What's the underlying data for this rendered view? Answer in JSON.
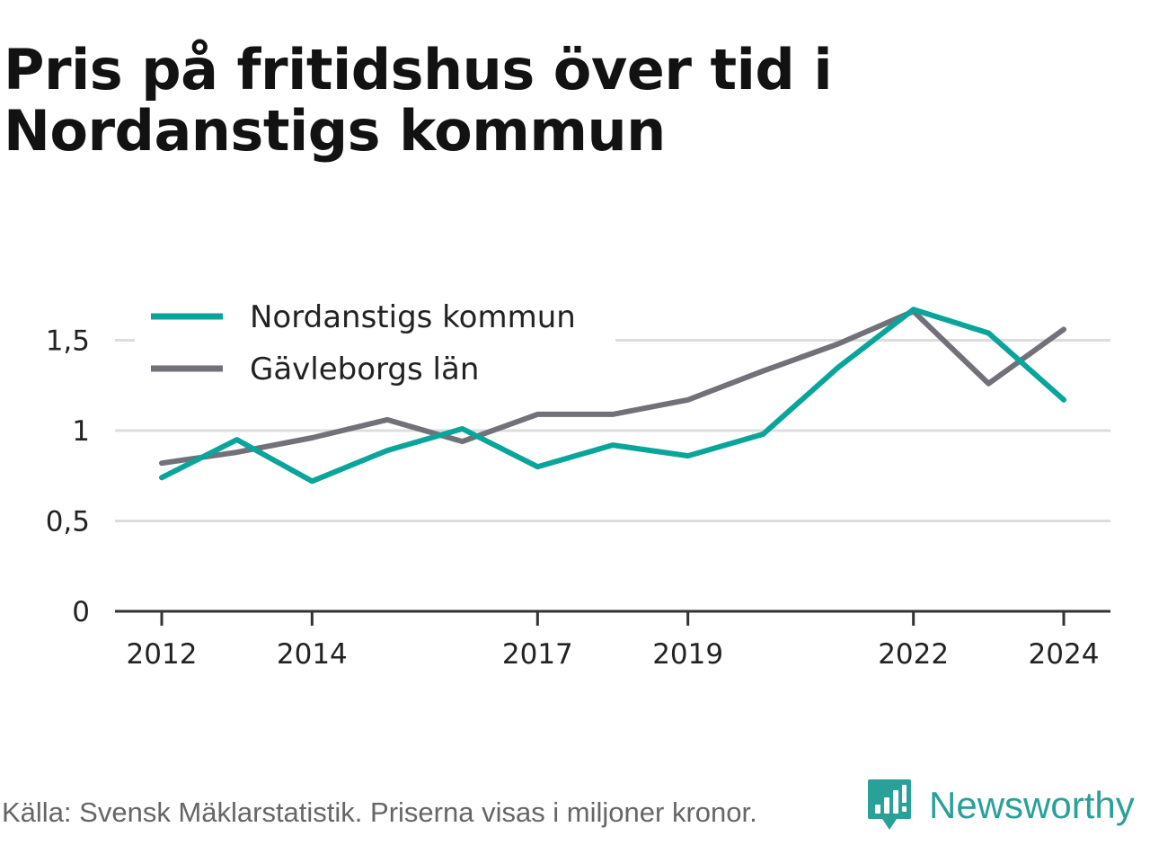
{
  "title": "Pris på fritidshus över tid i Nordanstigs kommun",
  "footer": {
    "source": "Källa: Svensk Mäklarstatistik. Priserna visas i miljoner kronor."
  },
  "brand": {
    "name": "Newsworthy",
    "icon": "newsworthy-logo-icon",
    "color": "#2aa198"
  },
  "chart_data": {
    "type": "line",
    "title": "Pris på fritidshus över tid i Nordanstigs kommun",
    "xlabel": "",
    "ylabel": "",
    "x": [
      2012,
      2013,
      2014,
      2015,
      2016,
      2017,
      2018,
      2019,
      2020,
      2021,
      2022,
      2023,
      2024
    ],
    "x_tick_labels": [
      "2012",
      "2014",
      "2017",
      "2019",
      "2022",
      "2024"
    ],
    "x_tick_values": [
      2012,
      2014,
      2017,
      2019,
      2022,
      2024
    ],
    "y_tick_labels": [
      "0",
      "0,5",
      "1",
      "1,5"
    ],
    "y_tick_values": [
      0,
      0.5,
      1,
      1.5
    ],
    "xlim": [
      2011.4,
      2024.6
    ],
    "ylim": [
      0,
      1.75
    ],
    "grid": "horizontal",
    "legend_position": "top-left",
    "series": [
      {
        "name": "Nordanstigs kommun",
        "color": "#0aa59a",
        "values": [
          0.74,
          0.95,
          0.72,
          0.89,
          1.01,
          0.8,
          0.92,
          0.86,
          0.98,
          1.35,
          1.67,
          1.54,
          1.17
        ]
      },
      {
        "name": "Gävleborgs län",
        "color": "#72717a",
        "values": [
          0.82,
          0.88,
          0.96,
          1.06,
          0.94,
          1.09,
          1.09,
          1.17,
          1.33,
          1.48,
          1.66,
          1.26,
          1.56
        ]
      }
    ]
  }
}
